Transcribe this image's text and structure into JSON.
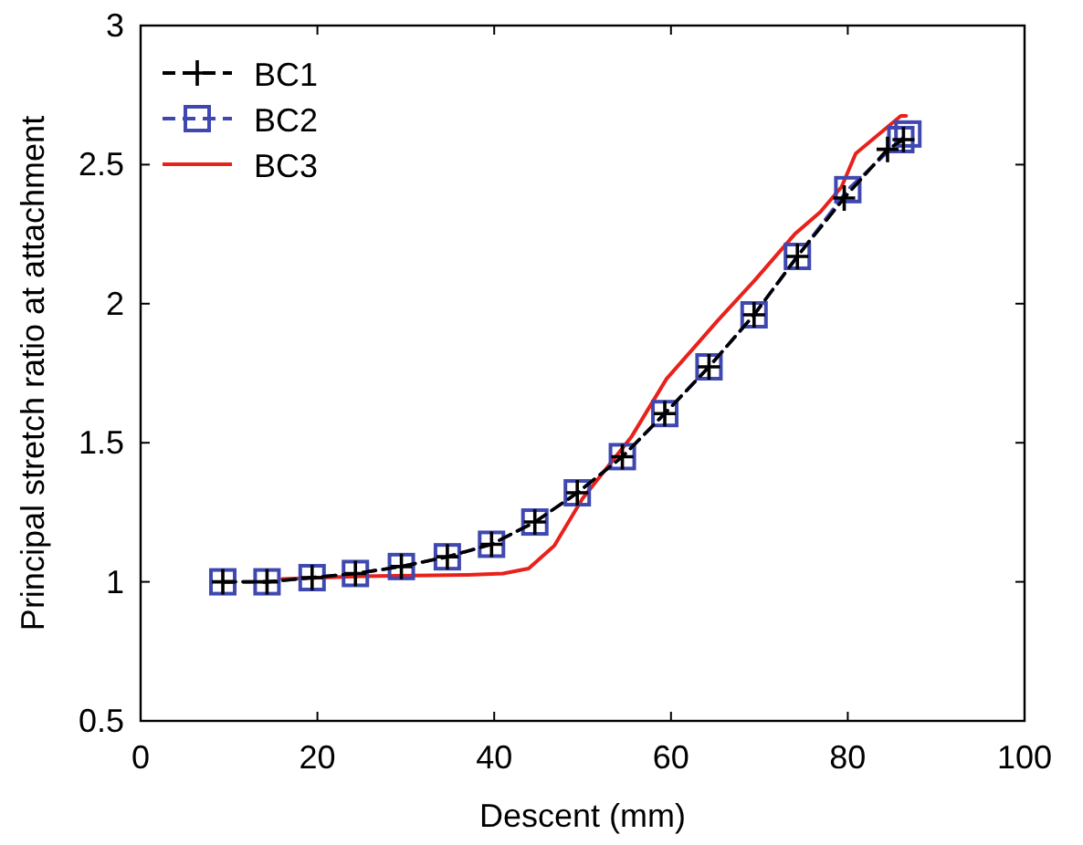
{
  "chart_data": {
    "type": "line",
    "xlabel": "Descent (mm)",
    "ylabel": "Principal stretch ratio at attachment",
    "xlim": [
      0,
      100
    ],
    "xticks": [
      0,
      20,
      40,
      60,
      80,
      100
    ],
    "ylim": [
      0.5,
      3
    ],
    "yticks": [
      0.5,
      1,
      1.5,
      2,
      2.5,
      3
    ],
    "grid": false,
    "legend": "top left",
    "series": [
      {
        "name": "BC1",
        "color": "#000000",
        "marker": "cross",
        "line_style": "dashed",
        "x": [
          9.3,
          14.3,
          19.4,
          24.3,
          29.5,
          34.7,
          39.7,
          44.6,
          49.4,
          54.5,
          59.3,
          64.3,
          69.4,
          74.3,
          79.6,
          84.5,
          86.3
        ],
        "values": [
          1.0,
          1.0,
          1.015,
          1.03,
          1.055,
          1.09,
          1.135,
          1.215,
          1.32,
          1.45,
          1.605,
          1.773,
          1.96,
          2.17,
          2.38,
          2.555,
          2.59
        ]
      },
      {
        "name": "BC2",
        "color": "#3f48b0",
        "marker": "square",
        "line_style": "dashed",
        "x": [
          9.3,
          14.3,
          19.4,
          24.3,
          29.5,
          34.7,
          39.7,
          44.6,
          49.4,
          54.5,
          59.3,
          64.3,
          69.4,
          74.3,
          80,
          86,
          86.8
        ],
        "values": [
          1.0,
          1.0,
          1.015,
          1.03,
          1.055,
          1.09,
          1.135,
          1.215,
          1.32,
          1.45,
          1.605,
          1.773,
          1.96,
          2.17,
          2.41,
          2.59,
          2.61
        ]
      },
      {
        "name": "BC3",
        "color": "#e8211b",
        "marker": "none",
        "line_style": "solid",
        "x": [
          16,
          25,
          37,
          41,
          43.9,
          46.8,
          50,
          55.5,
          59.5,
          63,
          65.3,
          69.5,
          74,
          76.9,
          79.3,
          80.9,
          86,
          86.6
        ],
        "values": [
          1.01,
          1.02,
          1.025,
          1.03,
          1.048,
          1.13,
          1.3,
          1.52,
          1.73,
          1.856,
          1.94,
          2.085,
          2.25,
          2.33,
          2.42,
          2.54,
          2.675,
          2.675
        ]
      }
    ]
  }
}
